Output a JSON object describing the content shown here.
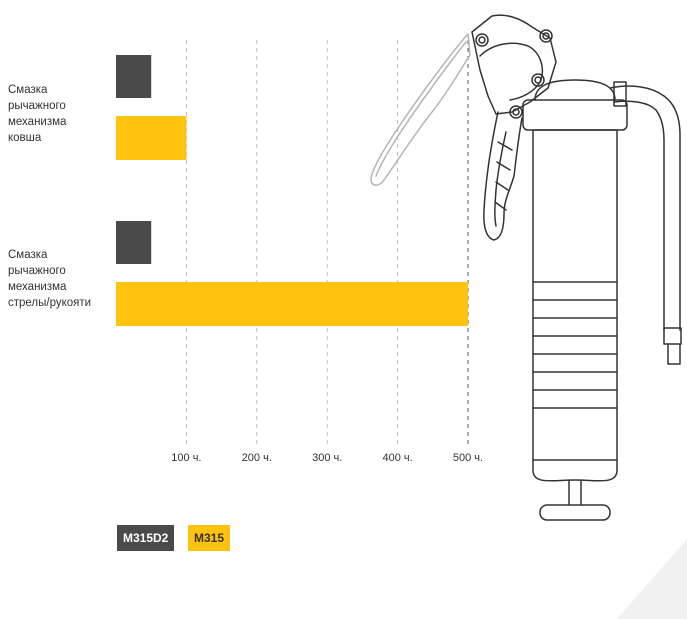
{
  "chart_data": {
    "type": "bar",
    "orientation": "horizontal",
    "categories": [
      "Смазка\nрычажного\nмеханизма\nковша",
      "Смазка\nрычажного\nмеханизма\nстрелы/рукояти"
    ],
    "series": [
      {
        "name": "M315D2",
        "values": [
          50,
          50
        ],
        "color": "#4a4a4a",
        "text_color": "#ffffff"
      },
      {
        "name": "M315",
        "values": [
          100,
          500
        ],
        "color": "#ffc20e",
        "text_color": "#333333"
      }
    ],
    "x_ticks": [
      100,
      200,
      300,
      400,
      500
    ],
    "x_tick_suffix": " ч.",
    "xlim": [
      0,
      500
    ],
    "grid": "vertical dashed",
    "legend_position": "bottom-left",
    "title": "",
    "xlabel": "",
    "ylabel": ""
  },
  "illustration": {
    "name": "grease-gun-icon",
    "stroke": "#333333"
  }
}
